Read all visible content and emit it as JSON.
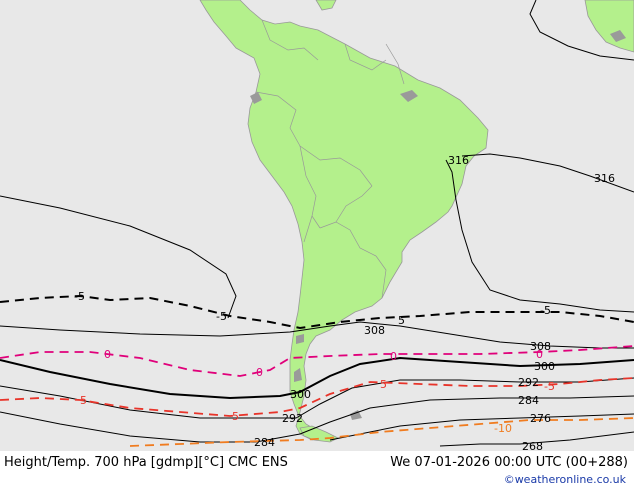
{
  "colors": {
    "ocean": "#e8e8e8",
    "land": "#b4f08c",
    "land_border": "#999999",
    "lakes": "#9a9a9a",
    "height_contour": "#000000",
    "temp_zero": "#e0007a",
    "temp_positive": "#e8342a",
    "temp_negative_10": "#f07c20",
    "temp_minus5": "#000000",
    "credit": "#1a3aa8"
  },
  "footer": {
    "left_text": "Height/Temp. 700 hPa [gdmp][°C] CMC ENS",
    "right_text": "We 07-01-2026 00:00 UTC (00+288)",
    "credit": "©weatheronline.co.uk"
  },
  "map": {
    "height_labels": [
      "316",
      "316",
      "308",
      "308",
      "300",
      "300",
      "292",
      "292",
      "284",
      "284",
      "276",
      "268"
    ],
    "temp_labels": [
      "-5",
      "-5",
      "5",
      "-5",
      "0",
      "0",
      "0",
      "0",
      "5",
      "5",
      "5",
      "-5",
      "-10"
    ]
  }
}
